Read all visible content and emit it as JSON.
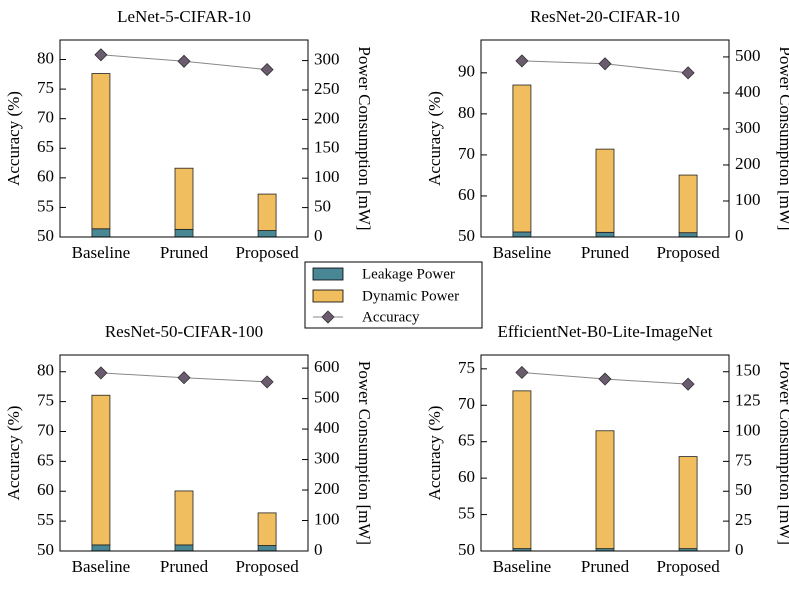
{
  "chart_data": [
    {
      "type": "combo",
      "title": "LeNet-5-CIFAR-10",
      "ylabel": "Accuracy (%)",
      "y2label": "Power Consumption [mW]",
      "categories": [
        "Baseline",
        "Pruned",
        "Proposed"
      ],
      "series": [
        {
          "name": "Leakage Power",
          "color": "#4a8795",
          "axis": "y2",
          "values": [
            14,
            13,
            11
          ]
        },
        {
          "name": "Dynamic Power",
          "color": "#f0be5e",
          "axis": "y2",
          "values": [
            264,
            104,
            62
          ]
        },
        {
          "name": "Accuracy",
          "color": "#6b5b6e",
          "values": [
            80.8,
            79.7,
            78.3
          ]
        }
      ],
      "ylim": [
        50,
        83.3
      ],
      "yticks": [
        50,
        55,
        60,
        65,
        70,
        75,
        80
      ],
      "y2lim": [
        0,
        335
      ],
      "y2ticks": [
        0,
        50,
        100,
        150,
        200,
        250,
        300
      ]
    },
    {
      "type": "combo",
      "title": "ResNet-20-CIFAR-10",
      "ylabel": "Accuracy (%)",
      "y2label": "Power Consumption [mW]",
      "categories": [
        "Baseline",
        "Pruned",
        "Proposed"
      ],
      "series": [
        {
          "color": "#4a8795",
          "axis": "y2",
          "values": [
            14,
            13,
            12
          ]
        },
        {
          "color": "#f0be5e",
          "axis": "y2",
          "values": [
            408,
            231,
            160
          ]
        },
        {
          "color": "#6b5b6e",
          "values": [
            92.9,
            92.2,
            90.0
          ]
        }
      ],
      "ylim": [
        50,
        98
      ],
      "yticks": [
        50,
        60,
        70,
        80,
        90
      ],
      "y2lim": [
        0,
        547
      ],
      "y2ticks": [
        0,
        100,
        200,
        300,
        400,
        500
      ]
    },
    {
      "type": "combo",
      "title": "ResNet-50-CIFAR-100",
      "ylabel": "Accuracy (%)",
      "y2label": "Power Consumption [mW]",
      "categories": [
        "Baseline",
        "Pruned",
        "Proposed"
      ],
      "series": [
        {
          "color": "#4a8795",
          "axis": "y2",
          "values": [
            20,
            20,
            18
          ]
        },
        {
          "color": "#f0be5e",
          "axis": "y2",
          "values": [
            491,
            177,
            107
          ]
        },
        {
          "color": "#6b5b6e",
          "values": [
            79.8,
            79.0,
            78.3
          ]
        }
      ],
      "ylim": [
        50,
        82.8
      ],
      "yticks": [
        50,
        55,
        60,
        65,
        70,
        75,
        80
      ],
      "y2lim": [
        0,
        643
      ],
      "y2ticks": [
        0,
        100,
        200,
        300,
        400,
        500,
        600
      ]
    },
    {
      "type": "combo",
      "title": "EfficientNet-B0-Lite-ImageNet",
      "ylabel": "Accuracy (%)",
      "y2label": "Power Consumption [mW]",
      "categories": [
        "Baseline",
        "Pruned",
        "Proposed"
      ],
      "series": [
        {
          "color": "#4a8795",
          "axis": "y2",
          "values": [
            2,
            2,
            2
          ]
        },
        {
          "color": "#f0be5e",
          "axis": "y2",
          "values": [
            132,
            98.6,
            77
          ]
        },
        {
          "color": "#6b5b6e",
          "values": [
            74.5,
            73.6,
            72.9
          ]
        }
      ],
      "ylim": [
        50,
        76.9
      ],
      "yticks": [
        50,
        55,
        60,
        65,
        70,
        75
      ],
      "y2lim": [
        0,
        164
      ],
      "y2ticks": [
        0,
        25,
        50,
        75,
        100,
        125,
        150
      ]
    }
  ]
}
